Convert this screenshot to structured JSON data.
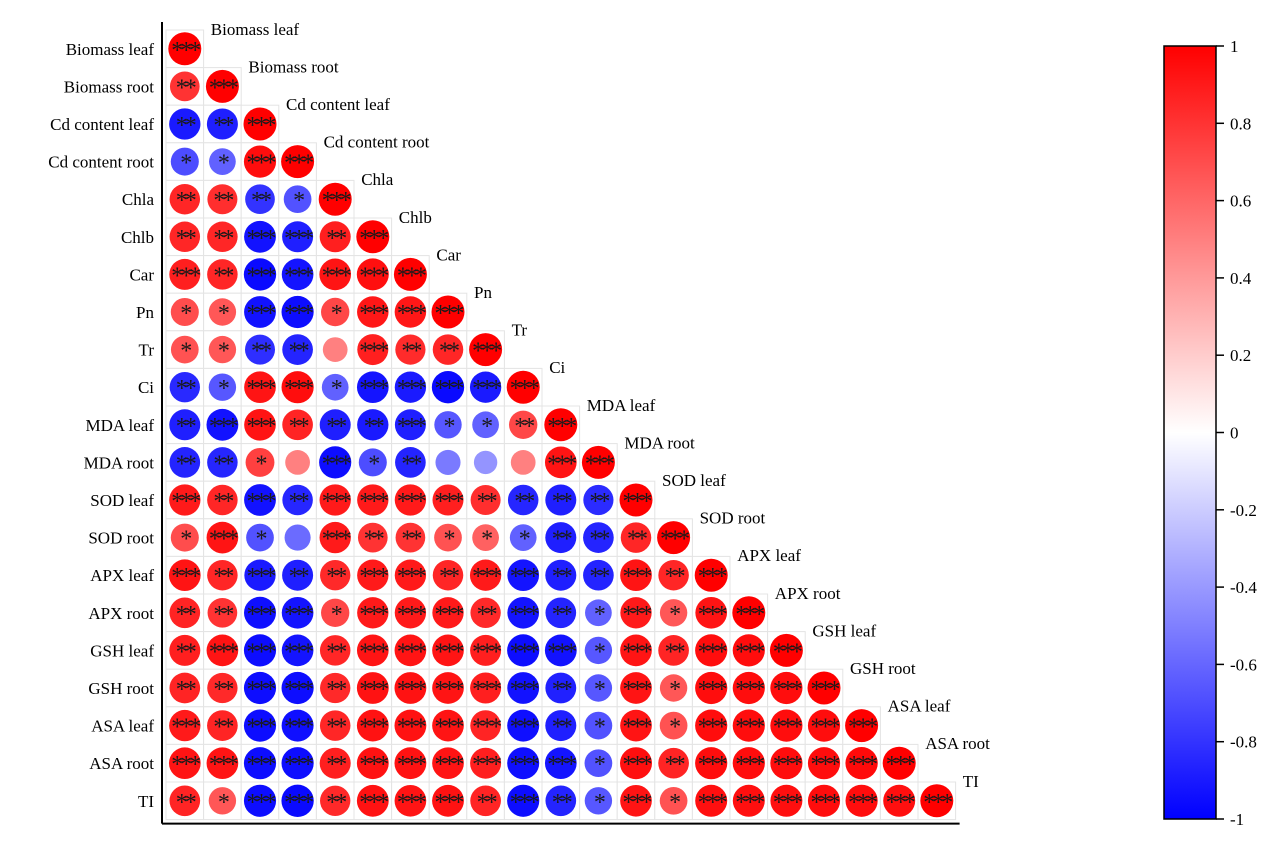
{
  "chart_data": {
    "type": "heatmap",
    "subtype": "lower-triangle correlation matrix (circle glyphs with significance stars)",
    "variables": [
      "Biomass leaf",
      "Biomass root",
      "Cd content leaf",
      "Cd content root",
      "Chla",
      "Chlb",
      "Car",
      "Pn",
      "Tr",
      "Ci",
      "MDA leaf",
      "MDA root",
      "SOD leaf",
      "SOD root",
      "APX leaf",
      "APX root",
      "GSH leaf",
      "GSH root",
      "ASA leaf",
      "ASA root",
      "TI"
    ],
    "matrix": [
      [
        1
      ],
      [
        0.8,
        1
      ],
      [
        -0.9,
        -0.88,
        1
      ],
      [
        -0.7,
        -0.62,
        0.95,
        1
      ],
      [
        0.85,
        0.82,
        -0.8,
        -0.68,
        1
      ],
      [
        0.85,
        0.85,
        -0.93,
        -0.88,
        0.88,
        1
      ],
      [
        0.88,
        0.85,
        -0.96,
        -0.92,
        0.92,
        0.94,
        1
      ],
      [
        0.7,
        0.66,
        -0.93,
        -0.95,
        0.72,
        0.91,
        0.91,
        1
      ],
      [
        0.68,
        0.66,
        -0.82,
        -0.86,
        0.5,
        0.88,
        0.83,
        0.85,
        1
      ],
      [
        -0.84,
        -0.66,
        0.92,
        0.95,
        -0.62,
        -0.92,
        -0.9,
        -0.96,
        -0.9,
        1
      ],
      [
        -0.88,
        -0.93,
        0.92,
        0.86,
        -0.88,
        -0.9,
        -0.88,
        -0.66,
        -0.62,
        0.72,
        1
      ],
      [
        -0.86,
        -0.85,
        0.75,
        0.5,
        -0.95,
        -0.7,
        -0.86,
        -0.52,
        -0.42,
        0.5,
        0.92,
        1
      ],
      [
        0.9,
        0.85,
        -0.93,
        -0.85,
        0.9,
        0.9,
        0.9,
        0.88,
        0.82,
        -0.85,
        -0.88,
        -0.83,
        1
      ],
      [
        0.7,
        0.92,
        -0.68,
        -0.58,
        0.9,
        0.8,
        0.8,
        0.68,
        0.62,
        -0.62,
        -0.88,
        -0.86,
        0.85,
        1
      ],
      [
        0.92,
        0.85,
        -0.9,
        -0.88,
        0.84,
        0.9,
        0.9,
        0.85,
        0.9,
        -0.92,
        -0.88,
        -0.86,
        0.92,
        0.85,
        1
      ],
      [
        0.86,
        0.8,
        -0.94,
        -0.92,
        0.72,
        0.9,
        0.9,
        0.9,
        0.84,
        -0.92,
        -0.86,
        -0.62,
        0.9,
        0.66,
        0.92,
        1
      ],
      [
        0.88,
        0.92,
        -0.95,
        -0.92,
        0.85,
        0.92,
        0.92,
        0.92,
        0.88,
        -0.95,
        -0.93,
        -0.66,
        0.92,
        0.86,
        0.95,
        0.95,
        1
      ],
      [
        0.86,
        0.84,
        -0.95,
        -0.95,
        0.84,
        0.93,
        0.93,
        0.92,
        0.88,
        -0.93,
        -0.87,
        -0.66,
        0.92,
        0.66,
        0.95,
        0.95,
        0.95,
        1
      ],
      [
        0.9,
        0.86,
        -0.95,
        -0.94,
        0.85,
        0.93,
        0.93,
        0.92,
        0.86,
        -0.94,
        -0.88,
        -0.68,
        0.92,
        0.68,
        0.95,
        0.95,
        0.95,
        0.95,
        1
      ],
      [
        0.92,
        0.92,
        -0.95,
        -0.95,
        0.88,
        0.93,
        0.93,
        0.92,
        0.88,
        -0.94,
        -0.92,
        -0.68,
        0.94,
        0.86,
        0.95,
        0.95,
        0.95,
        0.95,
        0.96,
        1
      ],
      [
        0.86,
        0.66,
        -0.95,
        -0.96,
        0.84,
        0.93,
        0.92,
        0.93,
        0.86,
        -0.95,
        -0.86,
        -0.66,
        0.92,
        0.68,
        0.94,
        0.94,
        0.94,
        0.95,
        0.95,
        0.94,
        1
      ]
    ],
    "significance": [
      [
        "***"
      ],
      [
        "**",
        "***"
      ],
      [
        "**",
        "**",
        "***"
      ],
      [
        "*",
        "*",
        "***",
        "***"
      ],
      [
        "**",
        "**",
        "**",
        "*",
        "***"
      ],
      [
        "**",
        "**",
        "***",
        "***",
        "**",
        "***"
      ],
      [
        "***",
        "**",
        "***",
        "***",
        "***",
        "***",
        "***"
      ],
      [
        "*",
        "*",
        "***",
        "***",
        "*",
        "***",
        "***",
        "***"
      ],
      [
        "*",
        "*",
        "**",
        "**",
        "",
        "***",
        "**",
        "**",
        "***"
      ],
      [
        "**",
        "*",
        "***",
        "***",
        "*",
        "***",
        "***",
        "***",
        "***",
        "***"
      ],
      [
        "**",
        "***",
        "***",
        "**",
        "**",
        "**",
        "***",
        "*",
        "*",
        "**",
        "***"
      ],
      [
        "**",
        "**",
        "*",
        "",
        "***",
        "*",
        "**",
        "",
        "",
        "",
        "***",
        "***"
      ],
      [
        "***",
        "**",
        "***",
        "**",
        "***",
        "***",
        "***",
        "***",
        "**",
        "**",
        "**",
        "**",
        "***"
      ],
      [
        "*",
        "***",
        "*",
        "",
        "***",
        "**",
        "**",
        "*",
        "*",
        "*",
        "**",
        "**",
        "**",
        "***"
      ],
      [
        "***",
        "**",
        "***",
        "**",
        "**",
        "***",
        "***",
        "**",
        "***",
        "***",
        "**",
        "**",
        "***",
        "**",
        "***"
      ],
      [
        "**",
        "**",
        "***",
        "***",
        "*",
        "***",
        "***",
        "***",
        "**",
        "***",
        "**",
        "*",
        "***",
        "*",
        "***",
        "***"
      ],
      [
        "**",
        "***",
        "***",
        "***",
        "**",
        "***",
        "***",
        "***",
        "***",
        "***",
        "***",
        "*",
        "***",
        "**",
        "***",
        "***",
        "***"
      ],
      [
        "**",
        "**",
        "***",
        "***",
        "**",
        "***",
        "***",
        "***",
        "***",
        "***",
        "**",
        "*",
        "***",
        "*",
        "***",
        "***",
        "***",
        "***"
      ],
      [
        "***",
        "**",
        "***",
        "***",
        "**",
        "***",
        "***",
        "***",
        "***",
        "***",
        "**",
        "*",
        "***",
        "*",
        "***",
        "***",
        "***",
        "***",
        "***"
      ],
      [
        "***",
        "***",
        "***",
        "***",
        "**",
        "***",
        "***",
        "***",
        "***",
        "***",
        "***",
        "*",
        "***",
        "**",
        "***",
        "***",
        "***",
        "***",
        "***",
        "***"
      ],
      [
        "**",
        "*",
        "***",
        "***",
        "**",
        "***",
        "***",
        "***",
        "**",
        "***",
        "**",
        "*",
        "***",
        "*",
        "***",
        "***",
        "***",
        "***",
        "***",
        "***",
        "***"
      ]
    ],
    "colorbar": {
      "range": [
        -1,
        1
      ],
      "ticks": [
        "1",
        "0.8",
        "0.6",
        "0.4",
        "0.2",
        "0",
        "-0.2",
        "-0.4",
        "-0.6",
        "-0.8",
        "-1"
      ],
      "tick_values": [
        1,
        0.8,
        0.6,
        0.4,
        0.2,
        0,
        -0.2,
        -0.4,
        -0.6,
        -0.8,
        -1
      ],
      "colors": {
        "negative": "#0000ff",
        "neutral": "#ffffff",
        "positive": "#ff0000"
      }
    },
    "title": "",
    "xlabel": "",
    "ylabel": ""
  }
}
